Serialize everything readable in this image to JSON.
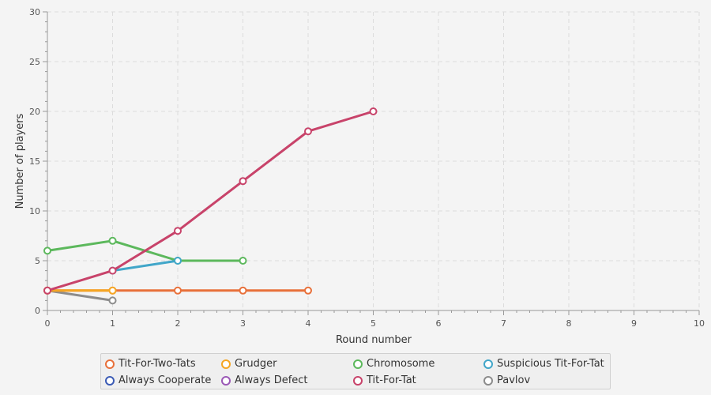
{
  "chart_data": {
    "type": "line",
    "title": "",
    "xlabel": "Round number",
    "ylabel": "Number of players",
    "xlim": [
      0,
      10
    ],
    "ylim": [
      0,
      30
    ],
    "x_ticks": [
      0,
      1,
      2,
      3,
      4,
      5,
      6,
      7,
      8,
      9,
      10
    ],
    "y_ticks": [
      0,
      5,
      10,
      15,
      20,
      25,
      30
    ],
    "grid": true,
    "legend_position": "bottom",
    "series": [
      {
        "name": "Pavlov",
        "color": "#8c8c8c",
        "x": [
          0,
          1
        ],
        "y": [
          2,
          1
        ]
      },
      {
        "name": "Tit-For-Two-Tats",
        "color": "#e8703a",
        "x": [
          0,
          1,
          2,
          3,
          4
        ],
        "y": [
          2,
          2,
          2,
          2,
          2
        ]
      },
      {
        "name": "Grudger",
        "color": "#f5a623",
        "x": [
          0,
          1
        ],
        "y": [
          2,
          2
        ]
      },
      {
        "name": "Chromosome",
        "color": "#5cb85c",
        "x": [
          0,
          1,
          2,
          3
        ],
        "y": [
          6,
          7,
          5,
          5
        ]
      },
      {
        "name": "Suspicious Tit-For-Tat",
        "color": "#41a6c9",
        "x": [
          1,
          2
        ],
        "y": [
          4,
          5
        ]
      },
      {
        "name": "Always Cooperate",
        "color": "#3b5bb5",
        "x": [],
        "y": []
      },
      {
        "name": "Always Defect",
        "color": "#9b59b6",
        "x": [],
        "y": []
      },
      {
        "name": "Tit-For-Tat",
        "color": "#c8436a",
        "x": [
          0,
          1,
          2,
          3,
          4,
          5
        ],
        "y": [
          2,
          4,
          8,
          13,
          18,
          20
        ]
      }
    ],
    "legend_order": [
      "Tit-For-Two-Tats",
      "Grudger",
      "Chromosome",
      "Suspicious Tit-For-Tat",
      "Always Cooperate",
      "Always Defect",
      "Tit-For-Tat",
      "Pavlov"
    ]
  }
}
